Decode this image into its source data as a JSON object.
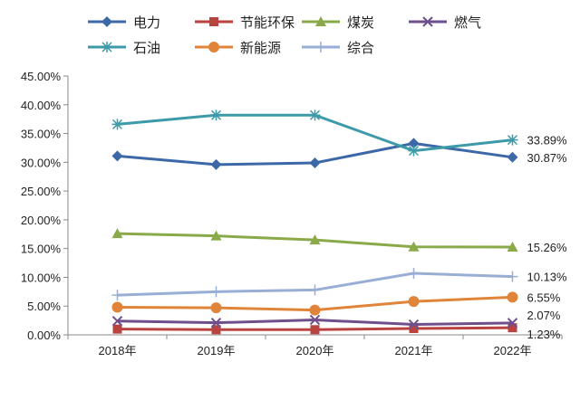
{
  "chart_data": {
    "type": "line",
    "categories": [
      "2018年",
      "2019年",
      "2020年",
      "2021年",
      "2022年"
    ],
    "ylim": [
      0,
      45
    ],
    "yticks": [
      "0.00%",
      "5.00%",
      "10.00%",
      "15.00%",
      "20.00%",
      "25.00%",
      "30.00%",
      "35.00%",
      "40.00%",
      "45.00%"
    ],
    "legend_position": "top",
    "series": [
      {
        "name": "电力",
        "color": "#3d68a8",
        "marker": "diamond",
        "values": [
          31.1,
          29.6,
          29.9,
          33.3,
          30.87
        ],
        "end_label": "30.87%"
      },
      {
        "name": "节能环保",
        "color": "#b8433f",
        "marker": "square",
        "values": [
          1.0,
          0.9,
          0.9,
          1.1,
          1.23
        ],
        "end_label": "1.23%"
      },
      {
        "name": "煤炭",
        "color": "#8aaa4a",
        "marker": "triangle",
        "values": [
          17.6,
          17.2,
          16.5,
          15.3,
          15.26
        ],
        "end_label": "15.26%"
      },
      {
        "name": "燃气",
        "color": "#6f4f8c",
        "marker": "x",
        "values": [
          2.4,
          2.1,
          2.6,
          1.8,
          2.07
        ],
        "end_label": "2.07%"
      },
      {
        "name": "石油",
        "color": "#3d9aa8",
        "marker": "star",
        "values": [
          36.6,
          38.2,
          38.2,
          32.0,
          33.89
        ],
        "end_label": "33.89%"
      },
      {
        "name": "新能源",
        "color": "#e0843a",
        "marker": "circle",
        "values": [
          4.8,
          4.7,
          4.3,
          5.8,
          6.55
        ],
        "end_label": "6.55%"
      },
      {
        "name": "综合",
        "color": "#99aed4",
        "marker": "plus",
        "values": [
          6.9,
          7.5,
          7.8,
          10.7,
          10.13
        ],
        "end_label": "10.13%"
      }
    ]
  }
}
